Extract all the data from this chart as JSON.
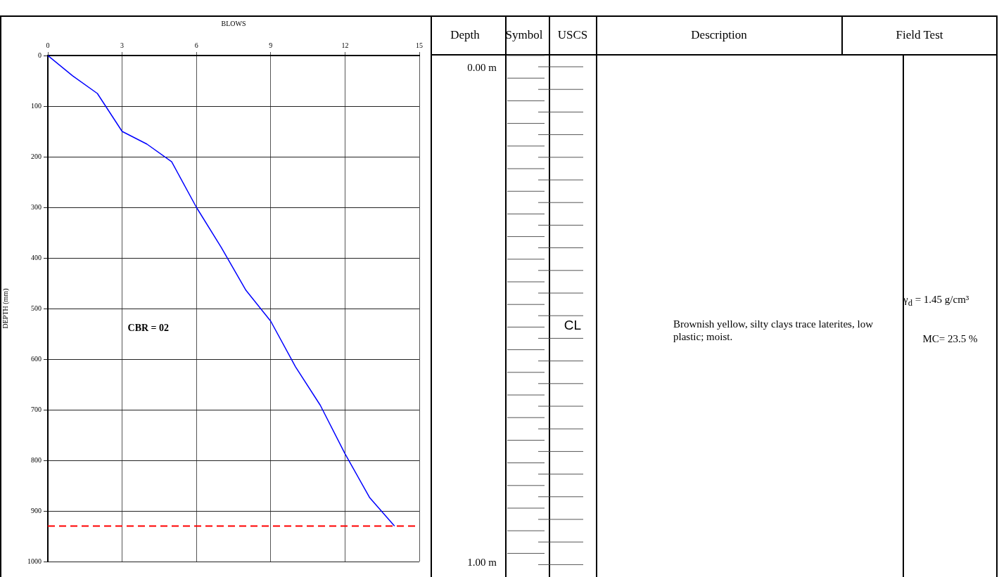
{
  "chart_data": [
    {
      "type": "line",
      "xlabel": "BLOWS",
      "ylabel": "DEPTH (mm)",
      "x": [
        0,
        1,
        2,
        3,
        4,
        5,
        6,
        7,
        8,
        9,
        10,
        11,
        12,
        13,
        14
      ],
      "series": [
        {
          "color": "#0000ff",
          "values": [
            0,
            40,
            75,
            150,
            175,
            210,
            300,
            379,
            464,
            525,
            615,
            691,
            787,
            874,
            930
          ]
        }
      ],
      "xlim": [
        0,
        15
      ],
      "xticks": [
        0,
        3,
        6,
        9,
        12,
        15
      ],
      "ylim": [
        1000,
        0
      ],
      "yticks": [
        0,
        100,
        200,
        300,
        400,
        500,
        600,
        700,
        800,
        900,
        1000
      ],
      "grid": true,
      "legend": false,
      "marker": "none",
      "line_style": "solid",
      "ref_lines": [
        {
          "axis": "y",
          "value": 930,
          "color": "#ff0000",
          "line_style": "dashed"
        }
      ],
      "annotations": [
        "CBR = 02"
      ]
    },
    {
      "type": "other",
      "annotations": [
        "Depth",
        "Symbol",
        "USCS",
        "Description",
        "Field Test",
        "0.00 m",
        "1.00 m",
        "CL",
        "Brownish yellow, silty clays trace laterites, low plastic; moist.",
        "γ$_{d}$ = 1.45 g/cm³",
        "MC= 23.5 %"
      ]
    }
  ]
}
